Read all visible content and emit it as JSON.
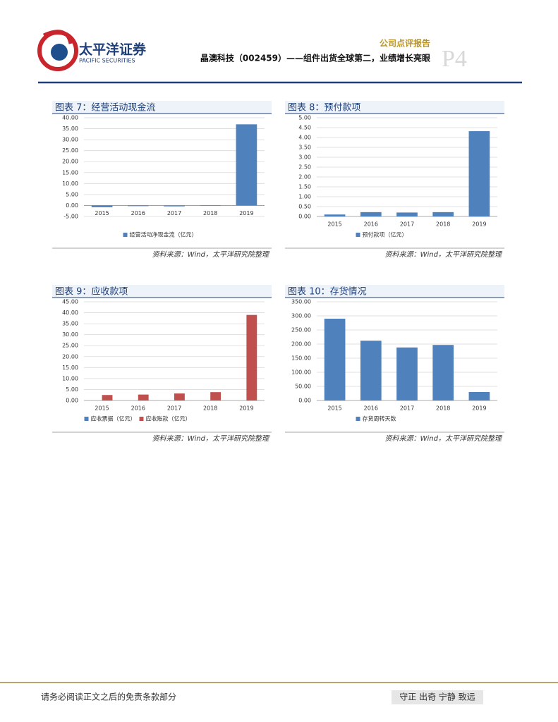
{
  "header": {
    "logo_cn": "太平洋证券",
    "logo_en": "PACIFIC SECURITIES",
    "report_type": "公司点评报告",
    "title": "晶澳科技（002459）——组件出货全球第二，业绩增长亮眼",
    "page": "P4"
  },
  "chart_data": [
    {
      "type": "bar",
      "title": "图表 7：经营活动现金流",
      "categories": [
        "2015",
        "2016",
        "2017",
        "2018",
        "2019"
      ],
      "series": [
        {
          "name": "经营活动净现金流（亿元）",
          "color": "#4f81bd",
          "values": [
            -0.8,
            -0.3,
            -0.4,
            -0.2,
            37
          ]
        }
      ],
      "ylim": [
        -5,
        40
      ],
      "yticks": [
        {
          "value": -5,
          "label": "-5.00"
        },
        {
          "value": 0,
          "label": "0.00"
        },
        {
          "value": 5,
          "label": "5.00"
        },
        {
          "value": 10,
          "label": "10.00"
        },
        {
          "value": 15,
          "label": "15.00"
        },
        {
          "value": 20,
          "label": "20.00"
        },
        {
          "value": 25,
          "label": "25.00"
        },
        {
          "value": 30,
          "label": "30.00"
        },
        {
          "value": 35,
          "label": "35.00"
        },
        {
          "value": 40,
          "label": "40.00"
        }
      ],
      "grid": true,
      "source": "资料来源：Wind，太平洋研究院整理"
    },
    {
      "type": "bar",
      "title": "图表 8：预付款项",
      "categories": [
        "2015",
        "2016",
        "2017",
        "2018",
        "2019"
      ],
      "series": [
        {
          "name": "预付款项（亿元）",
          "color": "#4f81bd",
          "values": [
            0.1,
            0.22,
            0.2,
            0.22,
            4.32
          ]
        }
      ],
      "ylim": [
        0,
        5
      ],
      "yticks": [
        {
          "value": 0,
          "label": "0.00"
        },
        {
          "value": 0.5,
          "label": "0.50"
        },
        {
          "value": 1,
          "label": "1.00"
        },
        {
          "value": 1.5,
          "label": "1.50"
        },
        {
          "value": 2,
          "label": "2.00"
        },
        {
          "value": 2.5,
          "label": "2.50"
        },
        {
          "value": 3,
          "label": "3.00"
        },
        {
          "value": 3.5,
          "label": "3.50"
        },
        {
          "value": 4,
          "label": "4.00"
        },
        {
          "value": 4.5,
          "label": "4.50"
        },
        {
          "value": 5,
          "label": "5.00"
        }
      ],
      "grid": true,
      "source": "资料来源：Wind，太平洋研究院整理"
    },
    {
      "type": "bar",
      "title": "图表 9：应收款项",
      "categories": [
        "2015",
        "2016",
        "2017",
        "2018",
        "2019"
      ],
      "series": [
        {
          "name": "应收票据（亿元）",
          "color": "#4f81bd",
          "values": [
            0,
            0,
            0,
            0,
            0
          ]
        },
        {
          "name": "应收账款（亿元）",
          "color": "#c0504d",
          "values": [
            2.5,
            2.7,
            3.2,
            3.8,
            39
          ]
        }
      ],
      "ylim": [
        0,
        45
      ],
      "yticks": [
        {
          "value": 0,
          "label": "0.00"
        },
        {
          "value": 5,
          "label": "5.00"
        },
        {
          "value": 10,
          "label": "10.00"
        },
        {
          "value": 15,
          "label": "15.00"
        },
        {
          "value": 20,
          "label": "20.00"
        },
        {
          "value": 25,
          "label": "25.00"
        },
        {
          "value": 30,
          "label": "30.00"
        },
        {
          "value": 35,
          "label": "35.00"
        },
        {
          "value": 40,
          "label": "40.00"
        },
        {
          "value": 45,
          "label": "45.00"
        }
      ],
      "grid": true,
      "source": "资料来源：Wind，太平洋研究院整理"
    },
    {
      "type": "bar",
      "title": "图表 10：存货情况",
      "categories": [
        "2015",
        "2016",
        "2017",
        "2018",
        "2019"
      ],
      "series": [
        {
          "name": "存货周转天数",
          "color": "#4f81bd",
          "values": [
            290,
            212,
            188,
            197,
            30
          ]
        }
      ],
      "ylim": [
        0,
        350
      ],
      "yticks": [
        {
          "value": 0,
          "label": "0.00"
        },
        {
          "value": 50,
          "label": "50.00"
        },
        {
          "value": 100,
          "label": "100.00"
        },
        {
          "value": 150,
          "label": "150.00"
        },
        {
          "value": 200,
          "label": "200.00"
        },
        {
          "value": 250,
          "label": "250.00"
        },
        {
          "value": 300,
          "label": "300.00"
        },
        {
          "value": 350,
          "label": "350.00"
        }
      ],
      "grid": true,
      "source": "资料来源：Wind，太平洋研究院整理"
    }
  ],
  "footer": {
    "disclaimer": "请务必阅读正文之后的免责条款部分",
    "motto": "守正 出奇 宁静 致远"
  }
}
